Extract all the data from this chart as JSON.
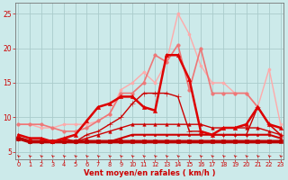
{
  "x": [
    0,
    1,
    2,
    3,
    4,
    5,
    6,
    7,
    8,
    9,
    10,
    11,
    12,
    13,
    14,
    15,
    16,
    17,
    18,
    19,
    20,
    21,
    22,
    23
  ],
  "background_color": "#cceaea",
  "grid_color": "#aacccc",
  "xlabel": "Vent moyen/en rafales ( km/h )",
  "xlabel_color": "#cc0000",
  "tick_color": "#cc0000",
  "ylim": [
    4.0,
    26.5
  ],
  "yticks": [
    5,
    10,
    15,
    20,
    25
  ],
  "xlim": [
    -0.3,
    23.3
  ],
  "lines": [
    {
      "y": [
        7.0,
        6.5,
        6.5,
        6.5,
        6.5,
        6.5,
        6.5,
        6.5,
        6.5,
        6.5,
        6.5,
        6.5,
        6.5,
        6.5,
        6.5,
        6.5,
        6.5,
        6.5,
        6.5,
        6.5,
        6.5,
        6.5,
        6.5,
        6.5
      ],
      "color": "#bb0000",
      "lw": 2.8,
      "marker": "s",
      "ms": 2.2,
      "mfc": "#bb0000",
      "zorder": 7
    },
    {
      "y": [
        7.0,
        6.5,
        6.5,
        6.5,
        6.5,
        6.5,
        6.5,
        6.5,
        6.5,
        7.0,
        7.5,
        7.5,
        7.5,
        7.5,
        7.5,
        7.5,
        7.5,
        7.5,
        7.5,
        7.5,
        7.5,
        7.5,
        7.5,
        7.0
      ],
      "color": "#cc0000",
      "lw": 1.5,
      "marker": "s",
      "ms": 2.0,
      "mfc": "#cc0000",
      "zorder": 6
    },
    {
      "y": [
        7.0,
        6.5,
        6.5,
        6.5,
        6.5,
        6.5,
        7.0,
        7.5,
        8.0,
        8.5,
        9.0,
        9.0,
        9.0,
        9.0,
        9.0,
        9.0,
        9.0,
        8.5,
        8.5,
        8.5,
        8.5,
        8.5,
        8.0,
        7.5
      ],
      "color": "#cc0000",
      "lw": 1.0,
      "marker": "^",
      "ms": 2.5,
      "mfc": "#cc0000",
      "zorder": 5
    },
    {
      "y": [
        7.0,
        6.5,
        6.5,
        6.5,
        7.0,
        6.5,
        7.5,
        8.0,
        9.0,
        10.0,
        12.0,
        13.5,
        13.5,
        13.5,
        13.0,
        8.0,
        8.0,
        7.5,
        7.5,
        7.5,
        7.5,
        11.5,
        9.0,
        7.5
      ],
      "color": "#cc0000",
      "lw": 1.0,
      "marker": "+",
      "ms": 4.5,
      "mfc": "#cc0000",
      "zorder": 5
    },
    {
      "y": [
        7.5,
        7.0,
        7.0,
        6.5,
        7.0,
        7.5,
        9.5,
        11.5,
        12.0,
        13.0,
        13.0,
        11.5,
        11.0,
        19.0,
        19.0,
        15.5,
        8.0,
        7.5,
        8.5,
        8.5,
        9.0,
        11.5,
        9.0,
        8.5
      ],
      "color": "#dd0000",
      "lw": 1.8,
      "marker": "^",
      "ms": 3.0,
      "mfc": "#dd0000",
      "zorder": 8
    },
    {
      "y": [
        9.0,
        9.0,
        9.0,
        8.5,
        8.0,
        8.0,
        8.5,
        9.5,
        10.5,
        13.5,
        13.5,
        15.0,
        19.0,
        18.0,
        20.5,
        14.0,
        20.0,
        13.5,
        13.5,
        13.5,
        13.5,
        11.5,
        9.0,
        7.5
      ],
      "color": "#ee7777",
      "lw": 1.2,
      "marker": "o",
      "ms": 2.5,
      "mfc": "#ee7777",
      "zorder": 3
    },
    {
      "y": [
        9.0,
        9.0,
        8.5,
        8.5,
        9.0,
        9.0,
        9.0,
        9.5,
        10.5,
        14.0,
        15.0,
        16.5,
        15.0,
        18.0,
        25.0,
        22.0,
        17.5,
        15.0,
        15.0,
        13.5,
        13.5,
        11.5,
        17.0,
        9.0
      ],
      "color": "#ffaaaa",
      "lw": 1.0,
      "marker": "o",
      "ms": 2.2,
      "mfc": "#ffaaaa",
      "zorder": 2
    }
  ],
  "wind_arrows": {
    "y": 4.3,
    "color": "#cc0000",
    "size": 5.5
  }
}
